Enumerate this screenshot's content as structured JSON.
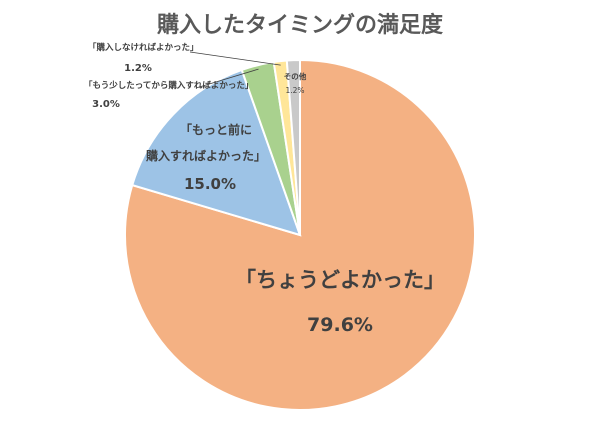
{
  "chart_data": {
    "type": "pie",
    "title": "購入したタイミングの満足度",
    "slices": [
      {
        "label": "「ちょうどよかった」",
        "value": 79.6,
        "value_text": "79.6%",
        "color": "#F4B183"
      },
      {
        "label": "「もっと前に購入すればよかった」",
        "label_lines": [
          "「もっと前に",
          "購入すればよかった」"
        ],
        "value": 15.0,
        "value_text": "15.0%",
        "color": "#9DC3E6"
      },
      {
        "label": "「もう少したってから購入すればよかった」",
        "value": 3.0,
        "value_text": "3.0%",
        "color": "#A9D18E"
      },
      {
        "label": "「購入しなければよかった」",
        "value": 1.2,
        "value_text": "1.2%",
        "color": "#FFE699"
      },
      {
        "label": "その他",
        "value": 1.2,
        "value_text": "1.2%",
        "color": "#C9C9C9"
      }
    ]
  }
}
